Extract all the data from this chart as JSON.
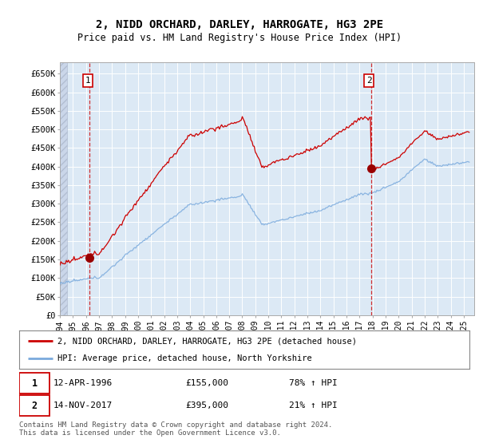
{
  "title": "2, NIDD ORCHARD, DARLEY, HARROGATE, HG3 2PE",
  "subtitle": "Price paid vs. HM Land Registry's House Price Index (HPI)",
  "plot_bg_color": "#dce9f5",
  "ylabel_ticks": [
    "£0",
    "£50K",
    "£100K",
    "£150K",
    "£200K",
    "£250K",
    "£300K",
    "£350K",
    "£400K",
    "£450K",
    "£500K",
    "£550K",
    "£600K",
    "£650K"
  ],
  "ytick_values": [
    0,
    50000,
    100000,
    150000,
    200000,
    250000,
    300000,
    350000,
    400000,
    450000,
    500000,
    550000,
    600000,
    650000
  ],
  "ylim": [
    0,
    680000
  ],
  "xlim_start": 1994.0,
  "xlim_end": 2025.8,
  "xticks": [
    1994,
    1995,
    1996,
    1997,
    1998,
    1999,
    2000,
    2001,
    2002,
    2003,
    2004,
    2005,
    2006,
    2007,
    2008,
    2009,
    2010,
    2011,
    2012,
    2013,
    2014,
    2015,
    2016,
    2017,
    2018,
    2019,
    2020,
    2021,
    2022,
    2023,
    2024,
    2025
  ],
  "transaction1_date": 1996.28,
  "transaction1_price": 155000,
  "transaction2_date": 2017.87,
  "transaction2_price": 395000,
  "legend_line1": "2, NIDD ORCHARD, DARLEY, HARROGATE, HG3 2PE (detached house)",
  "legend_line2": "HPI: Average price, detached house, North Yorkshire",
  "footer": "Contains HM Land Registry data © Crown copyright and database right 2024.\nThis data is licensed under the Open Government Licence v3.0.",
  "red_line_color": "#cc0000",
  "blue_line_color": "#7aaadd",
  "marker_color": "#990000"
}
